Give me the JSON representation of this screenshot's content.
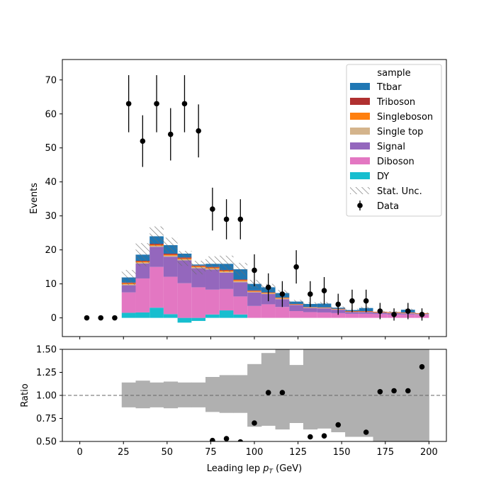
{
  "chart_data": [
    {
      "type": "bar",
      "panel": "main",
      "stacked": true,
      "ylabel": "Events",
      "ylim": [
        -5.5,
        76
      ],
      "yticks": [
        0,
        10,
        20,
        30,
        40,
        50,
        60,
        70
      ],
      "xlim": [
        -10,
        210
      ],
      "bin_edges": [
        24,
        32,
        40,
        48,
        56,
        64,
        72,
        80,
        88,
        96,
        104,
        112,
        120,
        128,
        136,
        144,
        152,
        160,
        168,
        176,
        184,
        192,
        200
      ],
      "legend_title": "sample",
      "legend_position": "top-right",
      "series": [
        {
          "name": "DY",
          "color": "#17becf",
          "values": [
            1.5,
            1.6,
            3.0,
            1.1,
            -1.4,
            -0.9,
            1.0,
            2.2,
            1.0,
            0,
            0,
            0,
            0,
            0,
            0,
            0,
            0,
            0,
            0,
            0,
            0,
            0
          ]
        },
        {
          "name": "Diboson",
          "color": "#e377c2",
          "values": [
            6.0,
            10.0,
            12.0,
            11.0,
            10.2,
            9.0,
            7.3,
            6.3,
            5.3,
            3.5,
            4.0,
            3.2,
            2.0,
            1.7,
            1.6,
            1.4,
            1.2,
            1.2,
            1.1,
            1.0,
            1.0,
            0.9
          ]
        },
        {
          "name": "Signal",
          "color": "#9467bd",
          "values": [
            2.1,
            4.4,
            5.9,
            5.9,
            6.7,
            5.6,
            5.9,
            4.8,
            4.2,
            4.0,
            3.0,
            2.3,
            1.8,
            1.2,
            1.2,
            1.0,
            0.5,
            0.5,
            0.4,
            0.4,
            0.3,
            0.2
          ]
        },
        {
          "name": "Single top",
          "color": "#d4b48c",
          "values": [
            0.3,
            0.3,
            0.3,
            0.3,
            0.3,
            0.3,
            0.3,
            0.3,
            0.3,
            0.2,
            0.2,
            0.2,
            0.1,
            0.1,
            0.1,
            0.1,
            0.1,
            0.1,
            0.1,
            0.1,
            0.1,
            0.1
          ]
        },
        {
          "name": "Singleboson",
          "color": "#ff7f0e",
          "values": [
            0.3,
            0.3,
            0.3,
            0.3,
            0.3,
            0.3,
            0.3,
            0.3,
            0.3,
            0.2,
            0.2,
            0.2,
            0.1,
            0.1,
            0.1,
            0.1,
            0.1,
            0.1,
            0.1,
            0.1,
            0.1,
            0.1
          ]
        },
        {
          "name": "Triboson",
          "color": "#b03030",
          "values": [
            0.2,
            0.2,
            0.3,
            0.3,
            0.3,
            0.2,
            0.2,
            0.2,
            0.2,
            0.2,
            0.1,
            0.1,
            0.1,
            0.1,
            0.1,
            0.1,
            0.1,
            0.1,
            0.1,
            0.1,
            0.1,
            0.1
          ]
        },
        {
          "name": "Ttbar",
          "color": "#1f77b4",
          "values": [
            1.5,
            1.8,
            2.2,
            2.5,
            1.1,
            0.3,
            0.9,
            1.8,
            3.0,
            1.9,
            1.5,
            1.3,
            0.7,
            0.9,
            1.1,
            0.3,
            0.3,
            0.9,
            0.0,
            0.0,
            0.8,
            0.0
          ]
        }
      ],
      "stat_unc_label": "Stat. Unc.",
      "stat_unc": [
        2.2,
        3.4,
        2.9,
        2.2,
        2.2,
        2.0,
        2.2,
        2.4,
        1.9,
        1.2,
        1.0,
        0.9,
        0.5,
        0.5,
        0.5,
        0.4,
        0.4,
        0.4,
        0.3,
        0.3,
        0.3,
        0.2
      ],
      "data_series": {
        "name": "Data",
        "x": [
          4,
          12,
          20,
          28,
          36,
          44,
          52,
          60,
          68,
          76,
          84,
          92,
          100,
          108,
          116,
          124,
          132,
          140,
          148,
          156,
          164,
          172,
          180,
          188,
          196
        ],
        "y": [
          0,
          0,
          0,
          63,
          52,
          63,
          54,
          63,
          55,
          32,
          29,
          29,
          14,
          9,
          7,
          15,
          7,
          8,
          4,
          5,
          5,
          2,
          1,
          2,
          1
        ],
        "err": [
          0,
          0,
          0,
          8.4,
          7.6,
          8.4,
          7.7,
          8.4,
          7.8,
          6.3,
          5.9,
          5.9,
          4.7,
          4.1,
          3.8,
          4.9,
          3.8,
          4.0,
          3.1,
          3.3,
          3.3,
          2.4,
          1.8,
          2.4,
          1.8
        ]
      }
    },
    {
      "type": "scatter",
      "panel": "ratio",
      "xlabel_prefix": "Leading lep ",
      "xlabel_var": "p",
      "xlabel_sub": "T",
      "xlabel_suffix": " (GeV)",
      "ylabel": "Ratio",
      "ylim": [
        0.5,
        1.5
      ],
      "yticks": [
        "0.50",
        "0.75",
        "1.00",
        "1.25",
        "1.50"
      ],
      "xticks": [
        0,
        25,
        50,
        75,
        100,
        125,
        150,
        175,
        200
      ],
      "reference_line": 1.0,
      "unc_band_color": "#b0b0b0",
      "unc_band": [
        [
          24,
          32,
          0.87,
          1.14
        ],
        [
          32,
          40,
          0.86,
          1.16
        ],
        [
          40,
          48,
          0.87,
          1.14
        ],
        [
          48,
          56,
          0.86,
          1.15
        ],
        [
          56,
          64,
          0.87,
          1.14
        ],
        [
          64,
          72,
          0.87,
          1.14
        ],
        [
          72,
          80,
          0.82,
          1.2
        ],
        [
          80,
          88,
          0.81,
          1.22
        ],
        [
          88,
          96,
          0.81,
          1.22
        ],
        [
          96,
          104,
          0.66,
          1.34
        ],
        [
          104,
          112,
          0.67,
          1.46
        ],
        [
          112,
          120,
          0.63,
          1.5
        ],
        [
          120,
          128,
          0.7,
          1.33
        ],
        [
          128,
          136,
          0.63,
          1.5
        ],
        [
          136,
          144,
          0.64,
          1.5
        ],
        [
          144,
          152,
          0.6,
          1.5
        ],
        [
          152,
          160,
          0.55,
          1.5
        ],
        [
          160,
          168,
          0.55,
          1.5
        ],
        [
          168,
          176,
          0.5,
          1.5
        ],
        [
          176,
          184,
          0.5,
          1.5
        ],
        [
          184,
          192,
          0.5,
          1.5
        ],
        [
          192,
          200,
          0.5,
          1.5
        ]
      ],
      "points": {
        "x": [
          76,
          84,
          92,
          100,
          108,
          116,
          132,
          140,
          148,
          164,
          172,
          180,
          188,
          196
        ],
        "y": [
          0.51,
          0.53,
          0.495,
          0.7,
          1.03,
          1.03,
          0.55,
          0.56,
          0.68,
          0.6,
          1.04,
          1.05,
          1.05,
          1.31
        ]
      }
    }
  ]
}
